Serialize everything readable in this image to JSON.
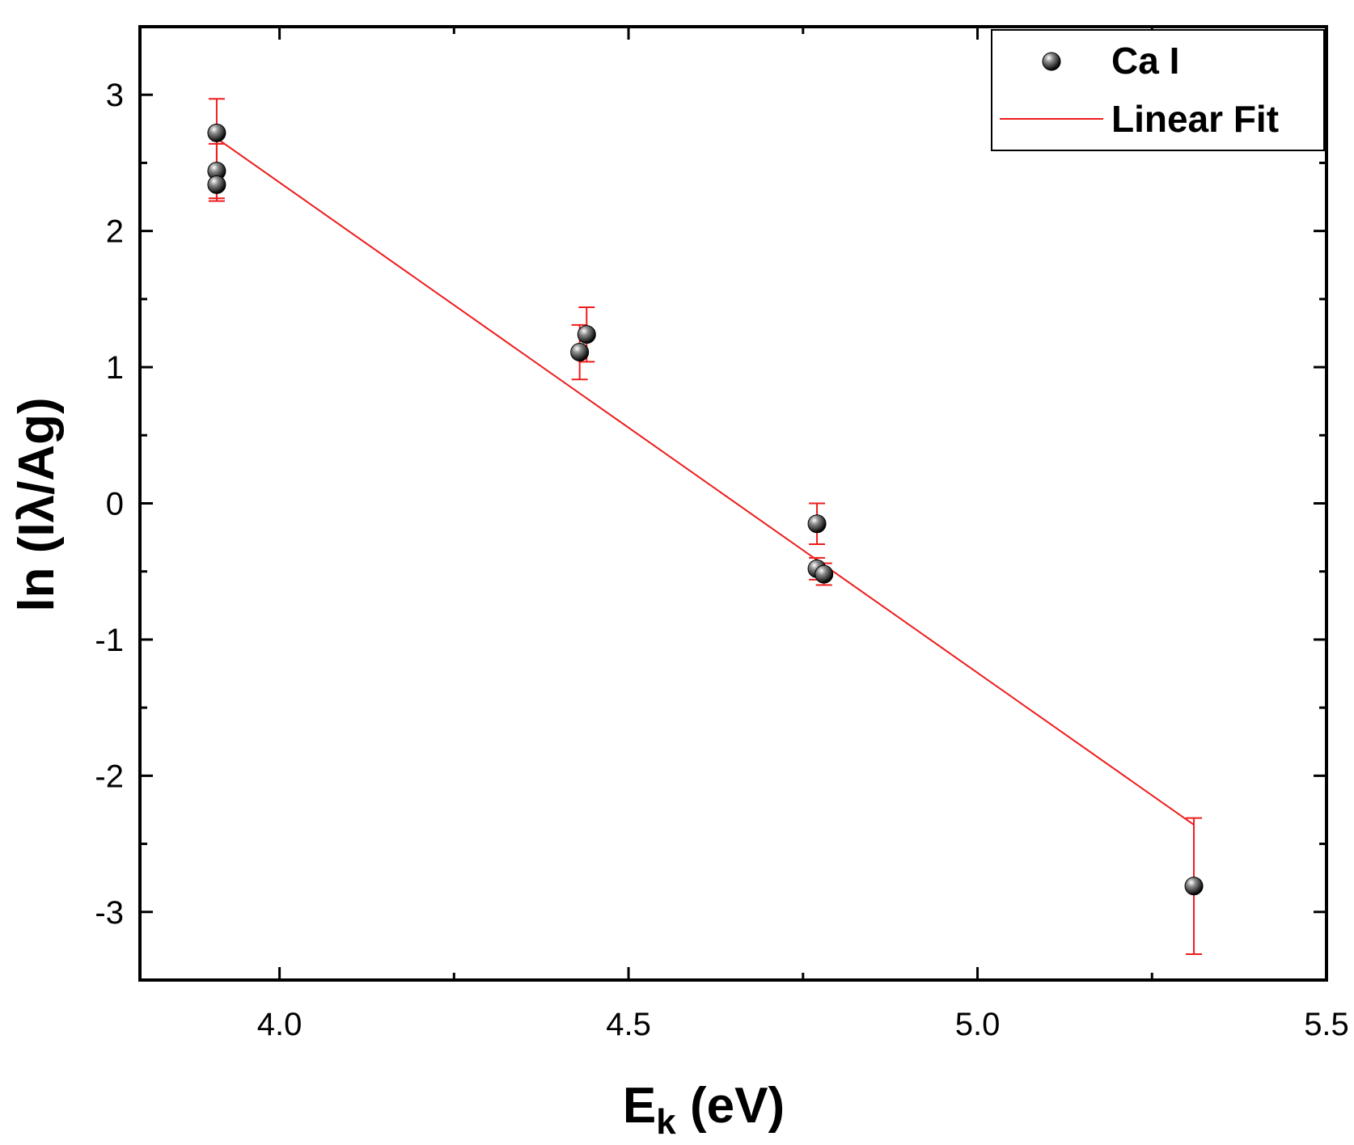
{
  "chart_data": {
    "type": "scatter",
    "title": "",
    "xlabel": "E",
    "xlabel_subscript": "k",
    "xlabel_unit": " (eV)",
    "ylabel": "ln (Iλ/Ag)",
    "xlim": [
      3.8,
      5.5
    ],
    "ylim": [
      -3.5,
      3.5
    ],
    "x_ticks": [
      4.0,
      4.5,
      5.0,
      5.5
    ],
    "x_tick_labels": [
      "4.0",
      "4.5",
      "5.0",
      "5.5"
    ],
    "y_ticks": [
      -3,
      -2,
      -1,
      0,
      1,
      2,
      3
    ],
    "y_tick_labels": [
      "-3",
      "-2",
      "-1",
      "0",
      "1",
      "2",
      "3"
    ],
    "legend_position": "top-right",
    "series": [
      {
        "name": "Ca I",
        "kind": "points",
        "color": "#000000",
        "errorbar_color": "#ee1c1c",
        "points": [
          {
            "x": 3.91,
            "y": 2.72,
            "err": 0.25
          },
          {
            "x": 3.91,
            "y": 2.44,
            "err": 0.2
          },
          {
            "x": 3.91,
            "y": 2.34,
            "err": 0.12
          },
          {
            "x": 4.43,
            "y": 1.11,
            "err": 0.2
          },
          {
            "x": 4.44,
            "y": 1.24,
            "err": 0.2
          },
          {
            "x": 4.77,
            "y": -0.15,
            "err": 0.15
          },
          {
            "x": 4.77,
            "y": -0.48,
            "err": 0.08
          },
          {
            "x": 4.78,
            "y": -0.52,
            "err": 0.08
          },
          {
            "x": 5.31,
            "y": -2.81,
            "err": 0.5
          }
        ]
      },
      {
        "name": "Linear Fit",
        "kind": "line",
        "color": "#ee1c1c",
        "x": [
          3.91,
          5.31
        ],
        "y": [
          2.68,
          -2.36
        ]
      }
    ]
  }
}
